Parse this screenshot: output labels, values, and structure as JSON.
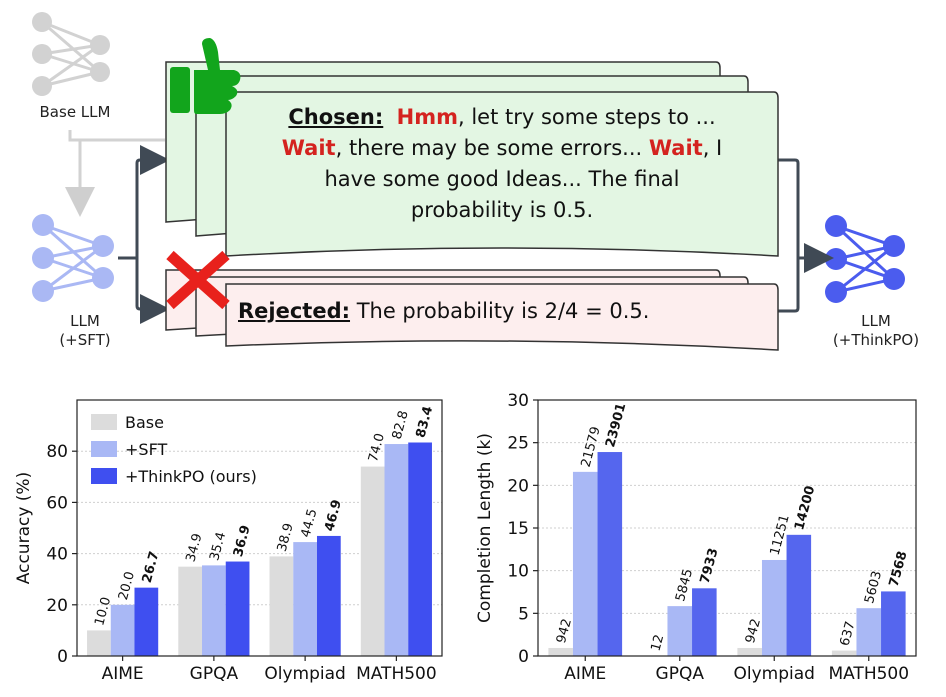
{
  "diagram": {
    "base_llm_label": "Base LLM",
    "sft_llm_label_line1": "LLM",
    "sft_llm_label_line2": "(+SFT)",
    "thinkpo_llm_label_line1": "LLM",
    "thinkpo_llm_label_line2": "(+ThinkPO)",
    "chosen": {
      "tag": "Chosen:",
      "word1": "Hmm",
      "text1": ", let try some steps to ...",
      "word2": "Wait",
      "text2": ", there may be some errors... ",
      "word3": "Wait",
      "text3": ", I",
      "line3": "have some good Ideas... The final",
      "line4": "probability is 0.5."
    },
    "rejected": {
      "tag": "Rejected:",
      "text": " The probability is 2/4 = 0.5."
    },
    "colors": {
      "chosen_fill": "#e3f6e3",
      "rejected_fill": "#fdeeee",
      "base_gray": "#d0d0d0",
      "sft_blue": "#a9b8f5",
      "thinkpo_blue": "#4455ee",
      "thumb_green": "#12a51c",
      "cross_red": "#e8211c"
    },
    "icons": [
      "neural-net-icon",
      "thumbs-up-icon",
      "cross-icon"
    ]
  },
  "chart_data": [
    {
      "type": "bar",
      "categories": [
        "AIME",
        "GPQA",
        "Olympiad",
        "MATH500"
      ],
      "series": [
        {
          "name": "Base",
          "values": [
            10.0,
            34.9,
            38.9,
            74.0
          ],
          "color": "#dcdcdc"
        },
        {
          "name": "+SFT",
          "values": [
            20.0,
            35.4,
            44.5,
            82.8
          ],
          "color": "#a9b8f5"
        },
        {
          "name": "+ThinkPO (ours)",
          "values": [
            26.7,
            36.9,
            46.9,
            83.4
          ],
          "color": "#3f4ff0"
        }
      ],
      "value_labels": [
        [
          "10.0",
          "34.9",
          "38.9",
          "74.0"
        ],
        [
          "20.0",
          "35.4",
          "44.5",
          "82.8"
        ],
        [
          "26.7",
          "36.9",
          "46.9",
          "83.4"
        ]
      ],
      "ylabel": "Accuracy (%)",
      "ylim": [
        0,
        100
      ],
      "yticks": [
        0,
        20,
        40,
        60,
        80
      ],
      "legend_position": "top-left",
      "grid": true
    },
    {
      "type": "bar",
      "categories": [
        "AIME",
        "GPQA",
        "Olympiad",
        "MATH500"
      ],
      "series": [
        {
          "values": [
            942,
            12,
            942,
            637
          ],
          "color": "#dcdcdc"
        },
        {
          "values": [
            21579,
            5845,
            11251,
            5603
          ],
          "color": "#a9b8f5"
        },
        {
          "values": [
            23901,
            7933,
            14200,
            7568
          ],
          "color": "#5566ee"
        }
      ],
      "value_labels": [
        [
          "942",
          "12",
          "942",
          "637"
        ],
        [
          "21579",
          "5845",
          "11251",
          "5603"
        ],
        [
          "23901",
          "7933",
          "14200",
          "7568"
        ]
      ],
      "ylabel": "Completion Length (k)",
      "ylim": [
        0,
        30000
      ],
      "yticks": [
        0,
        5,
        10,
        15,
        20,
        25,
        30
      ],
      "grid": true
    }
  ]
}
